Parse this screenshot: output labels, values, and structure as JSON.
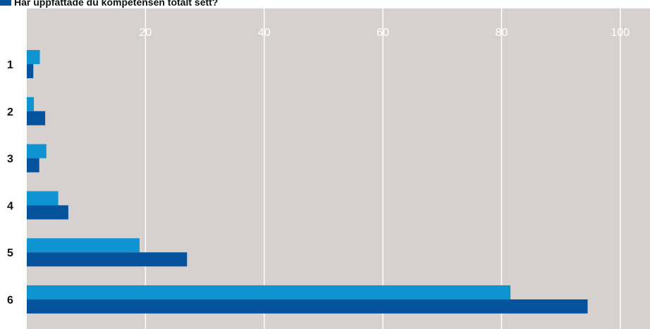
{
  "chart_data": {
    "type": "bar",
    "orientation": "horizontal",
    "title": "Har uppfattade du kompetensen totalt sett?",
    "categories": [
      "1",
      "2",
      "3",
      "4",
      "5",
      "6"
    ],
    "series": [
      {
        "values": [
          2.2,
          1.2,
          3.3,
          5.3,
          19.0,
          81.5
        ]
      },
      {
        "values": [
          1.1,
          3.1,
          2.1,
          7.0,
          27.0,
          94.5
        ]
      }
    ],
    "xticks": [
      "20",
      "40",
      "60",
      "80",
      "100"
    ],
    "xlim": [
      0,
      105
    ],
    "grid": true,
    "legend": "top-left"
  },
  "colors": {
    "series_1": "#0f94d2",
    "series_2": "#05539c",
    "plot_background": "#d6d1ce",
    "grid": "#ffffff",
    "tick_text": "#ffffff",
    "category_text": "#111111"
  }
}
